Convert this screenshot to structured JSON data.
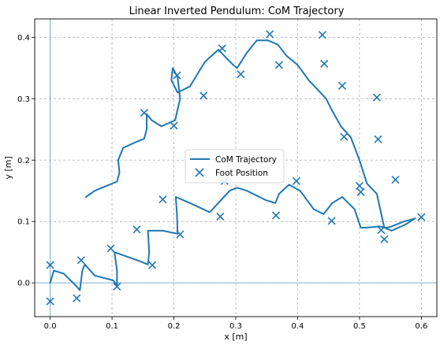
{
  "chart_data": {
    "type": "line",
    "title": "Linear Inverted Pendulum: CoM Trajectory",
    "xlabel": "x [m]",
    "ylabel": "y [m]",
    "xlim": [
      -0.025,
      0.625
    ],
    "ylim": [
      -0.055,
      0.43
    ],
    "xticks": [
      0.0,
      0.1,
      0.2,
      0.3,
      0.4,
      0.5,
      0.6
    ],
    "yticks": [
      0.0,
      0.1,
      0.2,
      0.3,
      0.4
    ],
    "xtick_labels": [
      "0.0",
      "0.1",
      "0.2",
      "0.3",
      "0.4",
      "0.5",
      "0.6"
    ],
    "ytick_labels": [
      "0.0",
      "0.1",
      "0.2",
      "0.3",
      "0.4"
    ],
    "grid": true,
    "legend_position": "center",
    "reference_lines": {
      "x": 0.0,
      "y": 0.0,
      "color": "#7fb3d5"
    },
    "series": [
      {
        "name": "CoM Trajectory",
        "kind": "line",
        "color": "#1f77b4",
        "x": [
          0.0,
          0.006,
          0.022,
          0.042,
          0.048,
          0.052,
          0.056,
          0.072,
          0.102,
          0.108,
          0.108,
          0.104,
          0.118,
          0.146,
          0.158,
          0.16,
          0.158,
          0.182,
          0.206,
          0.205,
          0.203,
          0.226,
          0.258,
          0.29,
          0.302,
          0.318,
          0.348,
          0.364,
          0.37,
          0.386,
          0.404,
          0.426,
          0.442,
          0.456,
          0.472,
          0.492,
          0.502,
          0.512,
          0.532,
          0.541,
          0.545,
          0.552,
          0.572,
          0.59,
          0.574,
          0.552,
          0.54,
          0.528,
          0.512,
          0.5,
          0.486,
          0.47,
          0.456,
          0.446,
          0.432,
          0.418,
          0.4,
          0.382,
          0.368,
          0.352,
          0.334,
          0.318,
          0.302,
          0.296,
          0.286,
          0.272,
          0.25,
          0.226,
          0.206,
          0.196,
          0.198,
          0.206,
          0.21,
          0.202,
          0.18,
          0.164,
          0.156,
          0.156,
          0.152,
          0.14,
          0.118,
          0.11,
          0.112,
          0.108,
          0.096,
          0.072,
          0.058
        ],
        "y": [
          0.0,
          0.02,
          0.015,
          -0.005,
          -0.012,
          0.02,
          0.03,
          0.012,
          0.004,
          -0.004,
          0.02,
          0.05,
          0.045,
          0.035,
          0.03,
          0.05,
          0.085,
          0.085,
          0.08,
          0.11,
          0.14,
          0.13,
          0.115,
          0.15,
          0.155,
          0.15,
          0.135,
          0.13,
          0.145,
          0.16,
          0.15,
          0.12,
          0.112,
          0.13,
          0.14,
          0.12,
          0.09,
          0.09,
          0.092,
          0.09,
          0.09,
          0.092,
          0.1,
          0.105,
          0.095,
          0.085,
          0.09,
          0.145,
          0.162,
          0.2,
          0.237,
          0.255,
          0.28,
          0.3,
          0.315,
          0.33,
          0.355,
          0.37,
          0.388,
          0.395,
          0.395,
          0.375,
          0.35,
          0.355,
          0.365,
          0.38,
          0.36,
          0.32,
          0.31,
          0.33,
          0.35,
          0.335,
          0.3,
          0.265,
          0.255,
          0.265,
          0.275,
          0.25,
          0.235,
          0.23,
          0.22,
          0.2,
          0.18,
          0.165,
          0.16,
          0.15,
          0.14
        ]
      },
      {
        "name": "Foot Position",
        "kind": "scatter",
        "marker": "x",
        "color": "#1f77b4",
        "x": [
          0.0,
          0.0,
          0.043,
          0.05,
          0.098,
          0.108,
          0.14,
          0.165,
          0.182,
          0.21,
          0.275,
          0.282,
          0.365,
          0.398,
          0.455,
          0.5,
          0.502,
          0.535,
          0.54,
          0.558,
          0.6,
          0.53,
          0.475,
          0.528,
          0.472,
          0.443,
          0.44,
          0.37,
          0.355,
          0.308,
          0.278,
          0.248,
          0.205,
          0.2,
          0.152
        ],
        "y": [
          0.029,
          -0.03,
          -0.025,
          0.037,
          0.056,
          -0.006,
          0.087,
          0.029,
          0.136,
          0.079,
          0.108,
          0.166,
          0.11,
          0.166,
          0.101,
          0.158,
          0.148,
          0.086,
          0.071,
          0.168,
          0.107,
          0.234,
          0.238,
          0.302,
          0.321,
          0.357,
          0.404,
          0.355,
          0.405,
          0.34,
          0.382,
          0.305,
          0.338,
          0.256,
          0.277
        ]
      }
    ]
  }
}
